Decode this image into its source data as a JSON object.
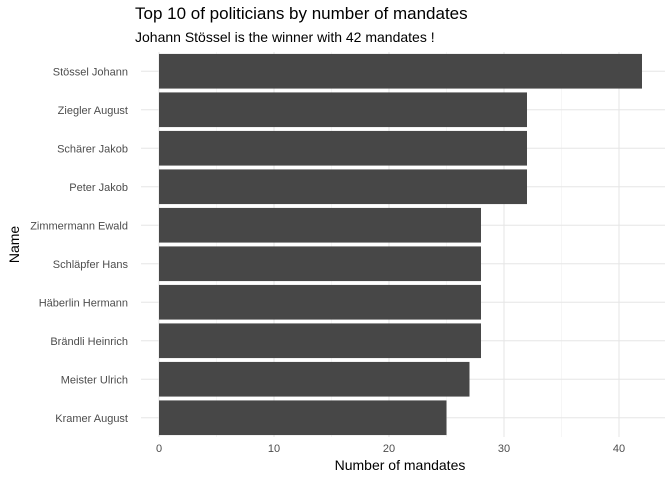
{
  "chart_data": {
    "type": "bar",
    "orientation": "horizontal",
    "title": "Top 10 of politicians by number of mandates",
    "subtitle": "Johann Stössel is the winner with 42 mandates !",
    "xlabel": "Number of mandates",
    "ylabel": "Name",
    "xlim": [
      0,
      44
    ],
    "xticks": [
      0,
      10,
      20,
      30,
      40
    ],
    "grid": true,
    "legend": "none",
    "bar_color": "#474747",
    "categories": [
      "Stössel Johann",
      "Ziegler August",
      "Schärer Jakob",
      "Peter Jakob",
      "Zimmermann Ewald",
      "Schläpfer Hans",
      "Häberlin Hermann",
      "Brändli Heinrich",
      "Meister Ulrich",
      "Kramer August"
    ],
    "values": [
      42,
      32,
      32,
      32,
      28,
      28,
      28,
      28,
      27,
      25
    ]
  }
}
